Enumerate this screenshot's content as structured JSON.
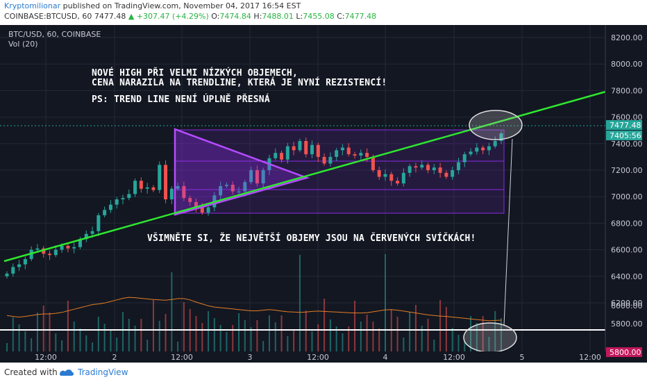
{
  "header": {
    "author": "Kryptomilionar",
    "published": "published on TradingView.com, November 04, 2017 16:54 EST"
  },
  "ohlc_line": {
    "symbol": "COINBASE:BTCUSD, 60",
    "last": "7477.48",
    "change": "+307.47 (+4.29%)",
    "o_label": "O:",
    "o": "7474.84",
    "h_label": "H:",
    "h": "7488.01",
    "l_label": "L:",
    "l": "7455.08",
    "c_label": "C:",
    "c": "7477.48"
  },
  "plot": {
    "title": "BTC/USD, 60, COINBASE",
    "volume_label": "Vol (20)"
  },
  "annotations": {
    "line1": "NOVÉ HIGH PŘI VELMI NÍZKÝCH OBJEMECH,",
    "line2": "CENA NARAZILA NA TRENDLINE, KTERÁ JE NYNÍ REZISTENCÍ!",
    "line3": "PS: TREND LINE NENÍ ÚPLNĚ PŘESNÁ",
    "line4": "VŠIMNĚTE SI, ŽE NEJVĚTŠÍ OBJEMY JSOU NA ČERVENÝCH SVÍČKÁCH!"
  },
  "price_tags": {
    "current": "7477.48",
    "countdown": "05:56",
    "countdown_prefix": "74",
    "volume_tag": "5800.00"
  },
  "footer": {
    "created": "Created with",
    "brand": "TradingView"
  },
  "colors": {
    "background": "#131722",
    "up": "#26a69a",
    "down": "#ef5350",
    "trendline": "#2ee82e",
    "triangle": "#9b30ff",
    "volume_ma": "#e67e22",
    "author": "#2a7bd0"
  },
  "chart_data": {
    "type": "candlestick",
    "title": "BTC/USD, 60, COINBASE",
    "y_ticks": [
      6200,
      6400,
      6600,
      6800,
      7000,
      7200,
      7400,
      7600,
      7800,
      8000,
      8200
    ],
    "y_tick_labels": [
      "6200.00",
      "6400.00",
      "6600.00",
      "6800.00",
      "7000.00",
      "7200.00",
      "7400.00",
      "7600.00",
      "7800.00",
      "8000.00",
      "8200.00"
    ],
    "volume_tick_labels": [
      "6000.00",
      "5800.00"
    ],
    "x_tick_labels": [
      "12:00",
      "2",
      "12:00",
      "3",
      "12:00",
      "4",
      "12:00",
      "5",
      "12:00"
    ],
    "ylim": [
      6050,
      8280
    ],
    "price_close": [
      6420,
      6470,
      6490,
      6530,
      6600,
      6610,
      6570,
      6560,
      6600,
      6630,
      6610,
      6620,
      6680,
      6720,
      6740,
      6860,
      6900,
      6940,
      6980,
      6990,
      7020,
      7120,
      7060,
      7070,
      7050,
      7240,
      6980,
      7060,
      7080,
      6990,
      6960,
      6920,
      6880,
      6920,
      7010,
      7080,
      7090,
      7040,
      7040,
      7110,
      7200,
      7100,
      7200,
      7290,
      7330,
      7280,
      7380,
      7350,
      7420,
      7320,
      7390,
      7300,
      7250,
      7300,
      7350,
      7370,
      7320,
      7310,
      7330,
      7300,
      7200,
      7150,
      7170,
      7120,
      7100,
      7180,
      7230,
      7220,
      7240,
      7200,
      7220,
      7180,
      7150,
      7200,
      7260,
      7320,
      7340,
      7370,
      7350,
      7380,
      7420,
      7477
    ],
    "volume_ma": [
      5835,
      5832,
      5830,
      5832,
      5835,
      5838,
      5840,
      5840,
      5842,
      5845,
      5850,
      5855,
      5860,
      5865,
      5870,
      5872,
      5875,
      5880,
      5885,
      5890,
      5893,
      5892,
      5890,
      5888,
      5886,
      5885,
      5884,
      5886,
      5889,
      5889,
      5885,
      5878,
      5872,
      5866,
      5862,
      5860,
      5858,
      5856,
      5854,
      5852,
      5850,
      5850,
      5852,
      5854,
      5852,
      5849,
      5847,
      5846,
      5845,
      5846,
      5848,
      5849,
      5848,
      5847,
      5846,
      5845,
      5844,
      5843,
      5843,
      5844,
      5847,
      5850,
      5853,
      5854,
      5852,
      5849,
      5846,
      5843,
      5840,
      5837,
      5835,
      5833,
      5832,
      5830,
      5828,
      5826,
      5824,
      5822,
      5820,
      5818,
      5819,
      5820
    ],
    "annotations": [
      "NOVÉ HIGH PŘI VELMI NÍZKÝCH OBJEMECH,",
      "CENA NARAZILA NA TRENDLINE, KTERÁ JE NYNÍ REZISTENCÍ!",
      "PS: TREND LINE NENÍ ÚPLNĚ PŘESNÁ",
      "VŠIMNĚTE SI, ŽE NEJVĚTŠÍ OBJEMY JSOU NA ČERVENÝCH SVÍČKÁCH!"
    ],
    "shapes": [
      "ascending trendline",
      "triangle pattern",
      "range rectangle",
      "highlight ellipses"
    ],
    "grid": true
  }
}
